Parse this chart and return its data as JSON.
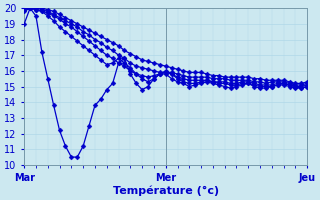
{
  "xlabel": "Température (°c)",
  "xlim": [
    0,
    48
  ],
  "ylim": [
    10,
    20
  ],
  "yticks": [
    10,
    11,
    12,
    13,
    14,
    15,
    16,
    17,
    18,
    19,
    20
  ],
  "xtick_positions": [
    0,
    24,
    48
  ],
  "xtick_labels": [
    "Mar",
    "Mer",
    "Jeu"
  ],
  "bg_color": "#cce8f0",
  "grid_color": "#b0d8e8",
  "line_color": "#0000cc",
  "markersize": 2.5,
  "linewidth": 0.9,
  "series": [
    [
      19.0,
      20.0,
      19.5,
      17.2,
      15.5,
      13.8,
      12.2,
      11.2,
      10.5,
      10.5,
      11.2,
      12.5,
      13.8,
      14.2,
      14.8,
      15.2,
      16.5,
      16.8,
      15.8,
      15.2,
      14.8,
      15.0,
      15.5,
      15.8,
      15.8,
      15.5,
      15.3,
      15.2,
      15.0,
      15.1,
      15.2,
      15.3,
      15.2,
      15.1,
      15.0,
      14.9,
      15.0,
      15.1,
      15.2,
      15.0,
      14.9,
      14.9,
      15.0,
      15.1,
      15.2,
      15.1,
      15.0,
      14.9,
      15.0
    ],
    [
      19.8,
      20.0,
      19.9,
      19.8,
      19.5,
      19.2,
      18.8,
      18.5,
      18.2,
      17.9,
      17.6,
      17.3,
      17.0,
      16.7,
      16.4,
      16.5,
      16.8,
      16.5,
      16.2,
      15.8,
      15.5,
      15.3,
      15.5,
      15.8,
      16.0,
      15.8,
      15.5,
      15.3,
      15.2,
      15.2,
      15.3,
      15.4,
      15.3,
      15.2,
      15.2,
      15.1,
      15.1,
      15.2,
      15.2,
      15.1,
      15.0,
      15.0,
      15.0,
      15.1,
      15.1,
      15.0,
      14.9,
      14.9,
      15.0
    ],
    [
      19.9,
      20.0,
      19.9,
      19.8,
      19.7,
      19.5,
      19.3,
      19.0,
      18.8,
      18.5,
      18.2,
      17.9,
      17.6,
      17.3,
      17.0,
      16.8,
      16.5,
      16.3,
      16.0,
      15.8,
      15.7,
      15.6,
      15.7,
      15.8,
      15.9,
      15.8,
      15.6,
      15.5,
      15.4,
      15.4,
      15.4,
      15.4,
      15.3,
      15.3,
      15.3,
      15.2,
      15.2,
      15.3,
      15.3,
      15.2,
      15.1,
      15.1,
      15.1,
      15.2,
      15.2,
      15.1,
      15.0,
      15.0,
      15.1
    ],
    [
      20.0,
      20.0,
      20.0,
      19.9,
      19.8,
      19.6,
      19.4,
      19.2,
      19.0,
      18.8,
      18.5,
      18.3,
      18.0,
      17.8,
      17.5,
      17.3,
      17.0,
      16.8,
      16.5,
      16.3,
      16.2,
      16.1,
      16.0,
      15.9,
      15.9,
      15.9,
      15.8,
      15.7,
      15.6,
      15.6,
      15.6,
      15.6,
      15.5,
      15.5,
      15.5,
      15.4,
      15.4,
      15.4,
      15.4,
      15.3,
      15.3,
      15.2,
      15.3,
      15.3,
      15.3,
      15.2,
      15.1,
      15.1,
      15.2
    ],
    [
      20.0,
      20.0,
      20.0,
      20.0,
      19.9,
      19.8,
      19.6,
      19.4,
      19.2,
      19.0,
      18.8,
      18.6,
      18.4,
      18.2,
      18.0,
      17.8,
      17.6,
      17.3,
      17.1,
      16.9,
      16.7,
      16.6,
      16.5,
      16.4,
      16.3,
      16.2,
      16.1,
      16.0,
      15.9,
      15.9,
      15.9,
      15.8,
      15.7,
      15.7,
      15.6,
      15.6,
      15.6,
      15.6,
      15.6,
      15.5,
      15.5,
      15.4,
      15.4,
      15.4,
      15.4,
      15.3,
      15.2,
      15.2,
      15.3
    ]
  ],
  "x_values": [
    0,
    1,
    2,
    3,
    4,
    5,
    6,
    7,
    8,
    9,
    10,
    11,
    12,
    13,
    14,
    15,
    16,
    17,
    18,
    19,
    20,
    21,
    22,
    23,
    24,
    25,
    26,
    27,
    28,
    29,
    30,
    31,
    32,
    33,
    34,
    35,
    36,
    37,
    38,
    39,
    40,
    41,
    42,
    43,
    44,
    45,
    46,
    47,
    48
  ]
}
